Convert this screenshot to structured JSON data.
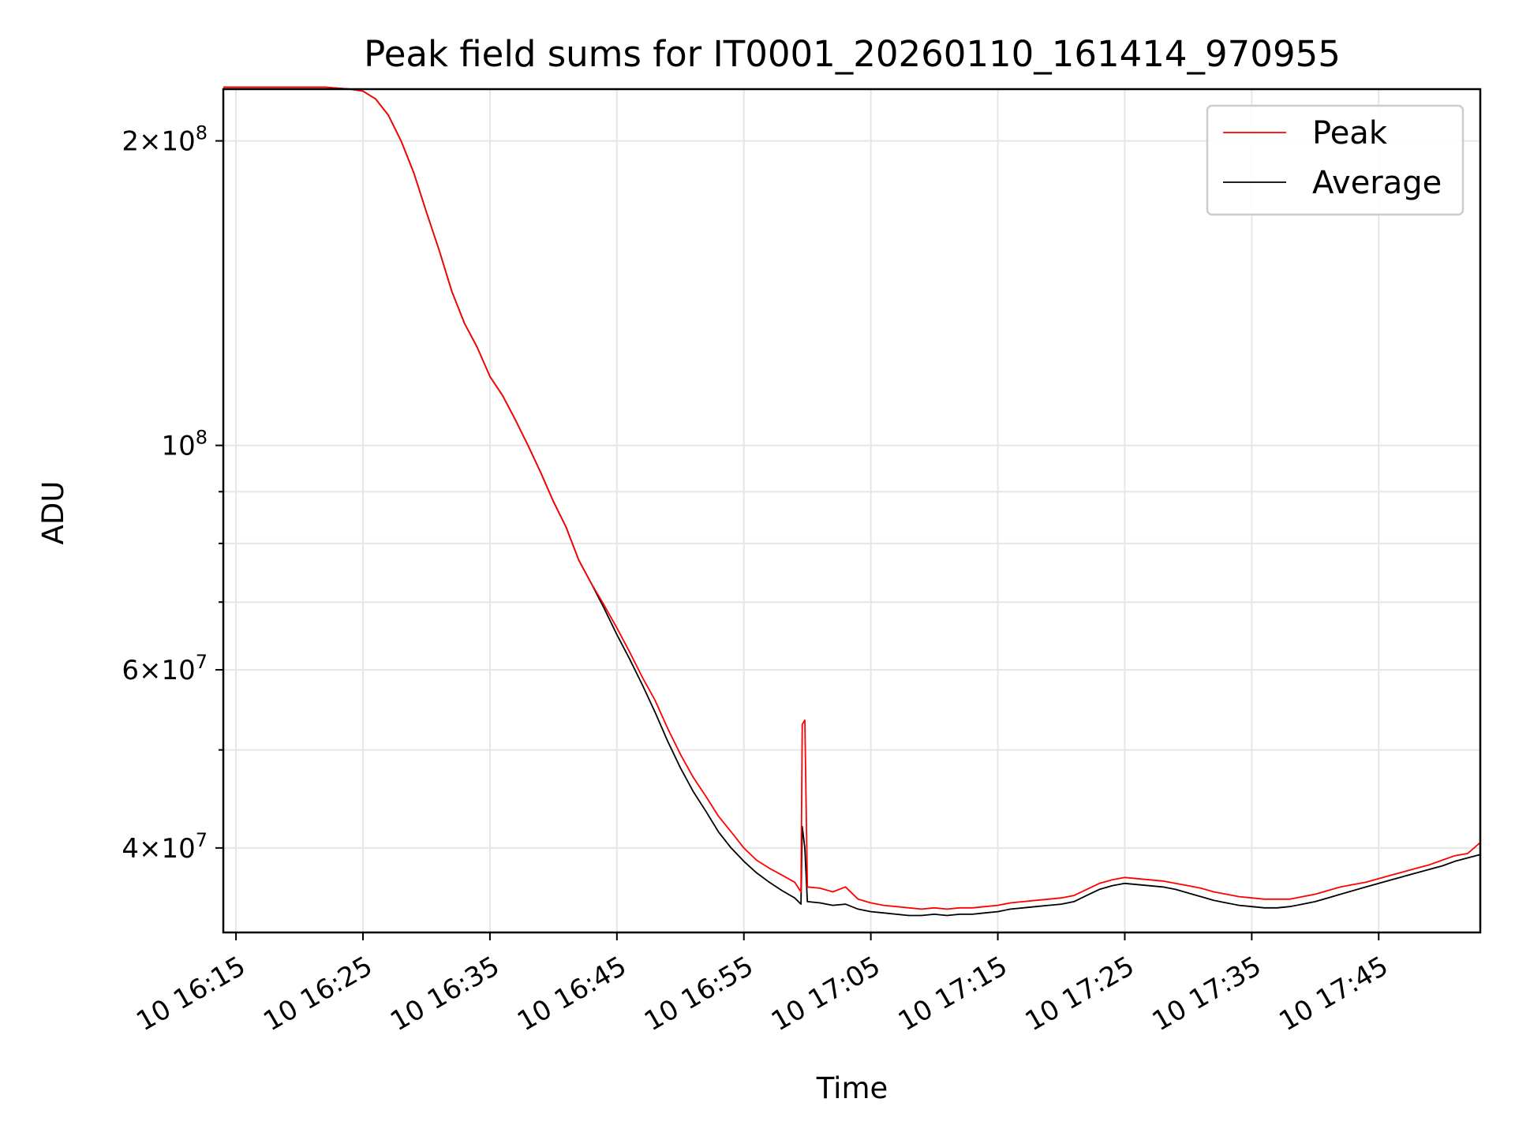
{
  "chart_data": {
    "type": "line",
    "title": "Peak field sums for IT0001_20260110_161414_970955",
    "xlabel": "Time",
    "ylabel": "ADU",
    "x_axis": {
      "kind": "time",
      "range": [
        "16:14",
        "17:53"
      ],
      "tick_labels": [
        "10 16:15",
        "10 16:25",
        "10 16:35",
        "10 16:45",
        "10 16:55",
        "10 17:05",
        "10 17:15",
        "10 17:25",
        "10 17:35",
        "10 17:45"
      ]
    },
    "y_axis": {
      "scale": "log",
      "range": [
        33000000,
        225000000
      ],
      "major_ticks": [
        {
          "value": 40000000,
          "mant": "4",
          "base": "×10",
          "exp": "7"
        },
        {
          "value": 60000000,
          "mant": "6",
          "base": "×10",
          "exp": "7"
        },
        {
          "value": 100000000,
          "mant": "",
          "base": "10",
          "exp": "8"
        },
        {
          "value": 200000000,
          "mant": "2",
          "base": "×10",
          "exp": "8"
        }
      ],
      "minor_ticks": [
        50000000,
        70000000,
        80000000,
        90000000
      ]
    },
    "grid": true,
    "legend_position": "top-right",
    "series": [
      {
        "name": "Peak",
        "color": "#ff0000",
        "points": [
          [
            "16:14",
            226000000
          ],
          [
            "16:20",
            226000000
          ],
          [
            "16:22",
            226000000
          ],
          [
            "16:24",
            225000000
          ],
          [
            "16:25",
            224000000
          ],
          [
            "16:26",
            220000000
          ],
          [
            "16:27",
            212000000
          ],
          [
            "16:28",
            200000000
          ],
          [
            "16:29",
            186000000
          ],
          [
            "16:30",
            170000000
          ],
          [
            "16:31",
            156000000
          ],
          [
            "16:32",
            142000000
          ],
          [
            "16:33",
            132000000
          ],
          [
            "16:34",
            125000000
          ],
          [
            "16:35",
            117000000
          ],
          [
            "16:36",
            112000000
          ],
          [
            "16:37",
            106000000
          ],
          [
            "16:38",
            100000000
          ],
          [
            "16:39",
            94000000
          ],
          [
            "16:40",
            88000000
          ],
          [
            "16:41",
            83000000
          ],
          [
            "16:42",
            77000000
          ],
          [
            "16:43",
            73000000
          ],
          [
            "16:44",
            69500000
          ],
          [
            "16:45",
            66000000
          ],
          [
            "16:46",
            62500000
          ],
          [
            "16:47",
            59000000
          ],
          [
            "16:48",
            56000000
          ],
          [
            "16:49",
            52500000
          ],
          [
            "16:50",
            49500000
          ],
          [
            "16:51",
            47000000
          ],
          [
            "16:52",
            45000000
          ],
          [
            "16:53",
            43000000
          ],
          [
            "16:54",
            41500000
          ],
          [
            "16:55",
            40000000
          ],
          [
            "16:56",
            38900000
          ],
          [
            "16:57",
            38200000
          ],
          [
            "16:58",
            37600000
          ],
          [
            "16:59",
            37000000
          ],
          [
            "16:59.5",
            36200000
          ],
          [
            "16:59.6",
            53000000
          ],
          [
            "16:59.8",
            53500000
          ],
          [
            "17:00",
            36600000
          ],
          [
            "17:01",
            36500000
          ],
          [
            "17:02",
            36200000
          ],
          [
            "17:03",
            36600000
          ],
          [
            "17:04",
            35600000
          ],
          [
            "17:05",
            35300000
          ],
          [
            "17:06",
            35100000
          ],
          [
            "17:07",
            35000000
          ],
          [
            "17:08",
            34900000
          ],
          [
            "17:09",
            34800000
          ],
          [
            "17:10",
            34900000
          ],
          [
            "17:11",
            34800000
          ],
          [
            "17:12",
            34900000
          ],
          [
            "17:13",
            34900000
          ],
          [
            "17:14",
            35000000
          ],
          [
            "17:15",
            35100000
          ],
          [
            "17:16",
            35300000
          ],
          [
            "17:17",
            35400000
          ],
          [
            "17:18",
            35500000
          ],
          [
            "17:19",
            35600000
          ],
          [
            "17:20",
            35700000
          ],
          [
            "17:21",
            35900000
          ],
          [
            "17:22",
            36400000
          ],
          [
            "17:23",
            36900000
          ],
          [
            "17:24",
            37200000
          ],
          [
            "17:25",
            37400000
          ],
          [
            "17:26",
            37300000
          ],
          [
            "17:27",
            37200000
          ],
          [
            "17:28",
            37100000
          ],
          [
            "17:29",
            36900000
          ],
          [
            "17:30",
            36700000
          ],
          [
            "17:31",
            36500000
          ],
          [
            "17:32",
            36200000
          ],
          [
            "17:33",
            36000000
          ],
          [
            "17:34",
            35800000
          ],
          [
            "17:35",
            35700000
          ],
          [
            "17:36",
            35600000
          ],
          [
            "17:37",
            35600000
          ],
          [
            "17:38",
            35600000
          ],
          [
            "17:39",
            35800000
          ],
          [
            "17:40",
            36000000
          ],
          [
            "17:41",
            36300000
          ],
          [
            "17:42",
            36600000
          ],
          [
            "17:43",
            36800000
          ],
          [
            "17:44",
            37000000
          ],
          [
            "17:45",
            37300000
          ],
          [
            "17:46",
            37600000
          ],
          [
            "17:47",
            37900000
          ],
          [
            "17:48",
            38200000
          ],
          [
            "17:49",
            38500000
          ],
          [
            "17:50",
            38900000
          ],
          [
            "17:51",
            39300000
          ],
          [
            "17:52",
            39500000
          ],
          [
            "17:53",
            40500000
          ]
        ]
      },
      {
        "name": "Average",
        "color": "#000000",
        "points": [
          [
            "16:14",
            226000000
          ],
          [
            "16:20",
            226000000
          ],
          [
            "16:22",
            226000000
          ],
          [
            "16:24",
            225000000
          ],
          [
            "16:25",
            224000000
          ],
          [
            "16:26",
            220000000
          ],
          [
            "16:27",
            212000000
          ],
          [
            "16:28",
            200000000
          ],
          [
            "16:29",
            186000000
          ],
          [
            "16:30",
            170000000
          ],
          [
            "16:31",
            156000000
          ],
          [
            "16:32",
            142000000
          ],
          [
            "16:33",
            132000000
          ],
          [
            "16:34",
            125000000
          ],
          [
            "16:35",
            117000000
          ],
          [
            "16:36",
            112000000
          ],
          [
            "16:37",
            106000000
          ],
          [
            "16:38",
            100000000
          ],
          [
            "16:39",
            94000000
          ],
          [
            "16:40",
            88000000
          ],
          [
            "16:41",
            83000000
          ],
          [
            "16:42",
            77000000
          ],
          [
            "16:43",
            73000000
          ],
          [
            "16:44",
            69000000
          ],
          [
            "16:45",
            65000000
          ],
          [
            "16:46",
            61500000
          ],
          [
            "16:47",
            58000000
          ],
          [
            "16:48",
            54500000
          ],
          [
            "16:49",
            51000000
          ],
          [
            "16:50",
            48000000
          ],
          [
            "16:51",
            45500000
          ],
          [
            "16:52",
            43500000
          ],
          [
            "16:53",
            41500000
          ],
          [
            "16:54",
            40000000
          ],
          [
            "16:55",
            38800000
          ],
          [
            "16:56",
            37800000
          ],
          [
            "16:57",
            37000000
          ],
          [
            "16:58",
            36300000
          ],
          [
            "16:59",
            35700000
          ],
          [
            "16:59.5",
            35200000
          ],
          [
            "16:59.6",
            42000000
          ],
          [
            "16:59.8",
            40000000
          ],
          [
            "17:00",
            35400000
          ],
          [
            "17:01",
            35300000
          ],
          [
            "17:02",
            35100000
          ],
          [
            "17:03",
            35200000
          ],
          [
            "17:04",
            34800000
          ],
          [
            "17:05",
            34600000
          ],
          [
            "17:06",
            34500000
          ],
          [
            "17:07",
            34400000
          ],
          [
            "17:08",
            34300000
          ],
          [
            "17:09",
            34300000
          ],
          [
            "17:10",
            34400000
          ],
          [
            "17:11",
            34300000
          ],
          [
            "17:12",
            34400000
          ],
          [
            "17:13",
            34400000
          ],
          [
            "17:14",
            34500000
          ],
          [
            "17:15",
            34600000
          ],
          [
            "17:16",
            34800000
          ],
          [
            "17:17",
            34900000
          ],
          [
            "17:18",
            35000000
          ],
          [
            "17:19",
            35100000
          ],
          [
            "17:20",
            35200000
          ],
          [
            "17:21",
            35400000
          ],
          [
            "17:22",
            35900000
          ],
          [
            "17:23",
            36400000
          ],
          [
            "17:24",
            36700000
          ],
          [
            "17:25",
            36900000
          ],
          [
            "17:26",
            36800000
          ],
          [
            "17:27",
            36700000
          ],
          [
            "17:28",
            36600000
          ],
          [
            "17:29",
            36400000
          ],
          [
            "17:30",
            36100000
          ],
          [
            "17:31",
            35800000
          ],
          [
            "17:32",
            35500000
          ],
          [
            "17:33",
            35300000
          ],
          [
            "17:34",
            35100000
          ],
          [
            "17:35",
            35000000
          ],
          [
            "17:36",
            34900000
          ],
          [
            "17:37",
            34900000
          ],
          [
            "17:38",
            35000000
          ],
          [
            "17:39",
            35200000
          ],
          [
            "17:40",
            35400000
          ],
          [
            "17:41",
            35700000
          ],
          [
            "17:42",
            36000000
          ],
          [
            "17:43",
            36300000
          ],
          [
            "17:44",
            36600000
          ],
          [
            "17:45",
            36900000
          ],
          [
            "17:46",
            37200000
          ],
          [
            "17:47",
            37500000
          ],
          [
            "17:48",
            37800000
          ],
          [
            "17:49",
            38100000
          ],
          [
            "17:50",
            38400000
          ],
          [
            "17:51",
            38800000
          ],
          [
            "17:52",
            39100000
          ],
          [
            "17:53",
            39400000
          ]
        ]
      }
    ]
  }
}
